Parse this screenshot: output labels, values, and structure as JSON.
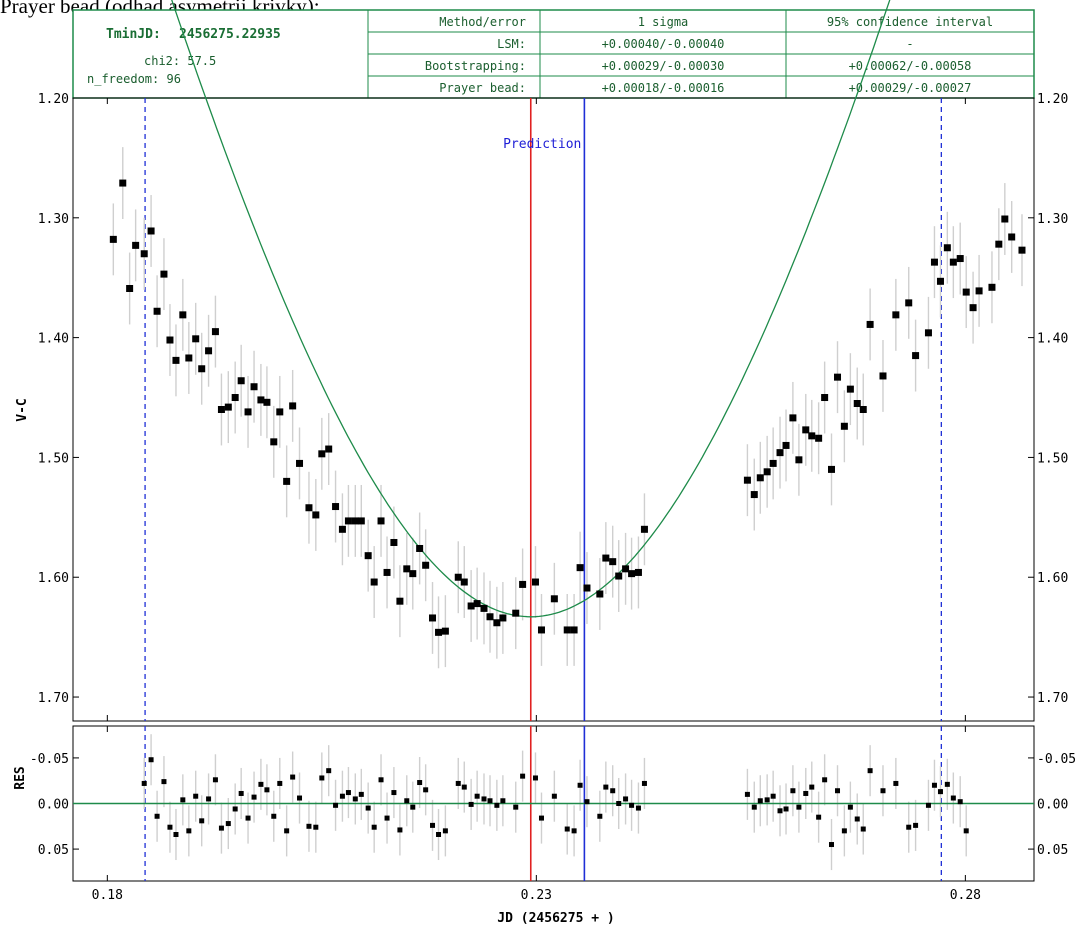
{
  "page_title": "Prayer bead (odhad asymetrii krivky):",
  "info": {
    "tmin_label": "TminJD:",
    "tmin_value": "2456275.22935",
    "chi2": "chi2: 57.5",
    "n_freedom": "n_freedom: 96",
    "headers": [
      "Method/error",
      "1 sigma",
      "95% confidence interval"
    ],
    "rows": [
      {
        "method": "LSM:",
        "sigma": "+0.00040/-0.00040",
        "ci": "-"
      },
      {
        "method": "Bootstrapping:",
        "sigma": "+0.00029/-0.00030",
        "ci": "+0.00062/-0.00058"
      },
      {
        "method": "Prayer bead:",
        "sigma": "+0.00018/-0.00016",
        "ci": "+0.00029/-0.00027"
      }
    ]
  },
  "colors": {
    "fit": "#1e8b4a",
    "tmin_line": "#e02020",
    "prediction_line": "#1f2fd6",
    "window": "#1f2fd6",
    "errorbar": "#cfcfcf",
    "frame": "#000000",
    "points": "#000000"
  },
  "chart_data": [
    {
      "type": "scatter",
      "ylabel": "V-C",
      "xlim": [
        0.176,
        0.288
      ],
      "ylim": [
        1.72,
        1.2
      ],
      "y_inverted": true,
      "xticks": [
        0.18,
        0.23,
        0.28
      ],
      "yticks": [
        1.2,
        1.3,
        1.4,
        1.5,
        1.6,
        1.7
      ],
      "ytick_labels": [
        "1.20",
        "1.30",
        "1.40",
        "1.50",
        "1.60",
        "1.70"
      ],
      "tmin_x": 0.22935,
      "prediction_x": 0.2356,
      "prediction_label": "Prediction",
      "window": [
        0.1844,
        0.2772
      ],
      "fit": {
        "x0": 0.22935,
        "ymin": 1.633,
        "a": 700,
        "s": 0.044
      },
      "points": [
        [
          0.1807,
          1.318,
          0.03
        ],
        [
          0.1818,
          1.271,
          0.03
        ],
        [
          0.1826,
          1.359,
          0.03
        ],
        [
          0.1833,
          1.323,
          0.03
        ],
        [
          0.1843,
          1.33,
          0.03
        ],
        [
          0.1851,
          1.311,
          0.03
        ],
        [
          0.1858,
          1.378,
          0.03
        ],
        [
          0.1866,
          1.347,
          0.03
        ],
        [
          0.1873,
          1.402,
          0.03
        ],
        [
          0.188,
          1.419,
          0.03
        ],
        [
          0.1888,
          1.381,
          0.03
        ],
        [
          0.1895,
          1.417,
          0.03
        ],
        [
          0.1903,
          1.401,
          0.03
        ],
        [
          0.191,
          1.426,
          0.03
        ],
        [
          0.1918,
          1.411,
          0.03
        ],
        [
          0.1926,
          1.395,
          0.03
        ],
        [
          0.1933,
          1.46,
          0.03
        ],
        [
          0.1941,
          1.458,
          0.03
        ],
        [
          0.1949,
          1.45,
          0.03
        ],
        [
          0.1956,
          1.436,
          0.03
        ],
        [
          0.1964,
          1.462,
          0.03
        ],
        [
          0.1971,
          1.441,
          0.03
        ],
        [
          0.1979,
          1.452,
          0.03
        ],
        [
          0.1986,
          1.454,
          0.03
        ],
        [
          0.1994,
          1.487,
          0.03
        ],
        [
          0.2001,
          1.462,
          0.03
        ],
        [
          0.2009,
          1.52,
          0.03
        ],
        [
          0.2016,
          1.457,
          0.03
        ],
        [
          0.2024,
          1.505,
          0.03
        ],
        [
          0.2035,
          1.542,
          0.03
        ],
        [
          0.2043,
          1.548,
          0.03
        ],
        [
          0.205,
          1.497,
          0.03
        ],
        [
          0.2058,
          1.493,
          0.03
        ],
        [
          0.2066,
          1.541,
          0.03
        ],
        [
          0.2074,
          1.56,
          0.03
        ],
        [
          0.2081,
          1.553,
          0.03
        ],
        [
          0.2089,
          1.553,
          0.03
        ],
        [
          0.2096,
          1.553,
          0.03
        ],
        [
          0.2104,
          1.582,
          0.03
        ],
        [
          0.2111,
          1.604,
          0.03
        ],
        [
          0.2119,
          1.553,
          0.03
        ],
        [
          0.2126,
          1.596,
          0.03
        ],
        [
          0.2134,
          1.571,
          0.03
        ],
        [
          0.2141,
          1.62,
          0.03
        ],
        [
          0.2149,
          1.593,
          0.03
        ],
        [
          0.2156,
          1.597,
          0.03
        ],
        [
          0.2164,
          1.576,
          0.03
        ],
        [
          0.2171,
          1.59,
          0.03
        ],
        [
          0.2179,
          1.634,
          0.03
        ],
        [
          0.2186,
          1.646,
          0.03
        ],
        [
          0.2194,
          1.645,
          0.03
        ],
        [
          0.2209,
          1.6,
          0.03
        ],
        [
          0.2216,
          1.604,
          0.03
        ],
        [
          0.2224,
          1.624,
          0.03
        ],
        [
          0.2231,
          1.622,
          0.03
        ],
        [
          0.2239,
          1.626,
          0.03
        ],
        [
          0.2246,
          1.633,
          0.03
        ],
        [
          0.2254,
          1.638,
          0.03
        ],
        [
          0.2261,
          1.634,
          0.03
        ],
        [
          0.2276,
          1.63,
          0.03
        ],
        [
          0.2284,
          1.606,
          0.03
        ],
        [
          0.2299,
          1.604,
          0.03
        ],
        [
          0.2306,
          1.644,
          0.03
        ],
        [
          0.2321,
          1.618,
          0.03
        ],
        [
          0.2336,
          1.644,
          0.03
        ],
        [
          0.2344,
          1.644,
          0.03
        ],
        [
          0.2351,
          1.592,
          0.03
        ],
        [
          0.2359,
          1.609,
          0.03
        ],
        [
          0.2374,
          1.614,
          0.03
        ],
        [
          0.2381,
          1.584,
          0.03
        ],
        [
          0.2389,
          1.587,
          0.03
        ],
        [
          0.2396,
          1.599,
          0.03
        ],
        [
          0.2404,
          1.593,
          0.03
        ],
        [
          0.2411,
          1.597,
          0.03
        ],
        [
          0.2419,
          1.596,
          0.03
        ],
        [
          0.2426,
          1.56,
          0.03
        ],
        [
          0.2546,
          1.519,
          0.03
        ],
        [
          0.2554,
          1.531,
          0.03
        ],
        [
          0.2561,
          1.517,
          0.03
        ],
        [
          0.2569,
          1.512,
          0.03
        ],
        [
          0.2576,
          1.505,
          0.03
        ],
        [
          0.2584,
          1.496,
          0.03
        ],
        [
          0.2591,
          1.49,
          0.03
        ],
        [
          0.2599,
          1.467,
          0.03
        ],
        [
          0.2606,
          1.502,
          0.03
        ],
        [
          0.2614,
          1.477,
          0.03
        ],
        [
          0.2621,
          1.482,
          0.03
        ],
        [
          0.2629,
          1.484,
          0.03
        ],
        [
          0.2636,
          1.45,
          0.03
        ],
        [
          0.2644,
          1.51,
          0.03
        ],
        [
          0.2651,
          1.433,
          0.03
        ],
        [
          0.2659,
          1.474,
          0.03
        ],
        [
          0.2666,
          1.443,
          0.03
        ],
        [
          0.2674,
          1.455,
          0.03
        ],
        [
          0.2681,
          1.46,
          0.03
        ],
        [
          0.2689,
          1.389,
          0.03
        ],
        [
          0.2704,
          1.432,
          0.03
        ],
        [
          0.2719,
          1.381,
          0.03
        ],
        [
          0.2734,
          1.371,
          0.03
        ],
        [
          0.2742,
          1.415,
          0.03
        ],
        [
          0.2757,
          1.396,
          0.03
        ],
        [
          0.2764,
          1.337,
          0.03
        ],
        [
          0.2771,
          1.353,
          0.03
        ],
        [
          0.2779,
          1.325,
          0.03
        ],
        [
          0.2786,
          1.337,
          0.03
        ],
        [
          0.2794,
          1.334,
          0.03
        ],
        [
          0.2801,
          1.362,
          0.03
        ],
        [
          0.2809,
          1.375,
          0.03
        ],
        [
          0.2816,
          1.361,
          0.03
        ],
        [
          0.2831,
          1.358,
          0.03
        ],
        [
          0.2839,
          1.322,
          0.03
        ],
        [
          0.2846,
          1.301,
          0.03
        ],
        [
          0.2854,
          1.316,
          0.03
        ],
        [
          0.2866,
          1.327,
          0.03
        ]
      ]
    },
    {
      "type": "scatter",
      "ylabel": "RES",
      "xlabel": "JD (2456275 + )",
      "xlim": [
        0.176,
        0.288
      ],
      "ylim": [
        0.085,
        -0.085
      ],
      "y_inverted": true,
      "xticks": [
        0.18,
        0.23,
        0.28
      ],
      "xtick_labels": [
        "0.18",
        "0.23",
        "0.28"
      ],
      "yticks": [
        -0.05,
        0.0,
        0.05
      ],
      "ytick_labels": [
        "-0.05",
        "0.00",
        "0.05"
      ],
      "zero_line": 0.0,
      "points": [
        [
          0.1843,
          -0.022,
          0.028
        ],
        [
          0.1851,
          -0.048,
          0.028
        ],
        [
          0.1858,
          0.014,
          0.028
        ],
        [
          0.1866,
          -0.024,
          0.028
        ],
        [
          0.1873,
          0.026,
          0.028
        ],
        [
          0.188,
          0.034,
          0.028
        ],
        [
          0.1888,
          -0.004,
          0.028
        ],
        [
          0.1895,
          0.03,
          0.028
        ],
        [
          0.1903,
          -0.008,
          0.028
        ],
        [
          0.191,
          0.019,
          0.028
        ],
        [
          0.1918,
          -0.005,
          0.028
        ],
        [
          0.1926,
          -0.026,
          0.028
        ],
        [
          0.1933,
          0.027,
          0.028
        ],
        [
          0.1941,
          0.022,
          0.028
        ],
        [
          0.1949,
          0.006,
          0.028
        ],
        [
          0.1956,
          -0.011,
          0.028
        ],
        [
          0.1964,
          0.016,
          0.028
        ],
        [
          0.1971,
          -0.007,
          0.028
        ],
        [
          0.1979,
          -0.021,
          0.028
        ],
        [
          0.1986,
          -0.015,
          0.028
        ],
        [
          0.1994,
          0.014,
          0.028
        ],
        [
          0.2001,
          -0.022,
          0.028
        ],
        [
          0.2009,
          0.03,
          0.028
        ],
        [
          0.2016,
          -0.029,
          0.028
        ],
        [
          0.2024,
          -0.006,
          0.028
        ],
        [
          0.2035,
          0.025,
          0.028
        ],
        [
          0.2043,
          0.026,
          0.028
        ],
        [
          0.205,
          -0.028,
          0.028
        ],
        [
          0.2058,
          -0.036,
          0.028
        ],
        [
          0.2066,
          0.002,
          0.028
        ],
        [
          0.2074,
          -0.008,
          0.028
        ],
        [
          0.2081,
          -0.012,
          0.028
        ],
        [
          0.2089,
          -0.005,
          0.028
        ],
        [
          0.2096,
          -0.01,
          0.028
        ],
        [
          0.2104,
          0.005,
          0.028
        ],
        [
          0.2111,
          0.026,
          0.028
        ],
        [
          0.2119,
          -0.026,
          0.028
        ],
        [
          0.2126,
          0.016,
          0.028
        ],
        [
          0.2134,
          -0.012,
          0.028
        ],
        [
          0.2141,
          0.029,
          0.028
        ],
        [
          0.2149,
          -0.003,
          0.028
        ],
        [
          0.2156,
          0.004,
          0.028
        ],
        [
          0.2164,
          -0.023,
          0.028
        ],
        [
          0.2171,
          -0.015,
          0.028
        ],
        [
          0.2179,
          0.024,
          0.028
        ],
        [
          0.2186,
          0.034,
          0.028
        ],
        [
          0.2194,
          0.03,
          0.028
        ],
        [
          0.2209,
          -0.022,
          0.028
        ],
        [
          0.2216,
          -0.018,
          0.028
        ],
        [
          0.2224,
          0.001,
          0.028
        ],
        [
          0.2231,
          -0.008,
          0.028
        ],
        [
          0.2239,
          -0.005,
          0.028
        ],
        [
          0.2246,
          -0.003,
          0.028
        ],
        [
          0.2254,
          0.002,
          0.028
        ],
        [
          0.2261,
          -0.003,
          0.028
        ],
        [
          0.2276,
          0.004,
          0.028
        ],
        [
          0.2284,
          -0.03,
          0.028
        ],
        [
          0.2299,
          -0.028,
          0.028
        ],
        [
          0.2306,
          0.016,
          0.028
        ],
        [
          0.2321,
          -0.008,
          0.028
        ],
        [
          0.2336,
          0.028,
          0.028
        ],
        [
          0.2344,
          0.03,
          0.028
        ],
        [
          0.2351,
          -0.02,
          0.028
        ],
        [
          0.2359,
          -0.002,
          0.028
        ],
        [
          0.2374,
          0.014,
          0.028
        ],
        [
          0.2381,
          -0.018,
          0.028
        ],
        [
          0.2389,
          -0.014,
          0.028
        ],
        [
          0.2396,
          0.0,
          0.028
        ],
        [
          0.2404,
          -0.005,
          0.028
        ],
        [
          0.2411,
          0.002,
          0.028
        ],
        [
          0.2419,
          0.005,
          0.028
        ],
        [
          0.2426,
          -0.022,
          0.028
        ],
        [
          0.2546,
          -0.01,
          0.028
        ],
        [
          0.2554,
          0.004,
          0.028
        ],
        [
          0.2561,
          -0.003,
          0.028
        ],
        [
          0.2569,
          -0.004,
          0.028
        ],
        [
          0.2576,
          -0.008,
          0.028
        ],
        [
          0.2584,
          0.008,
          0.028
        ],
        [
          0.2591,
          0.006,
          0.028
        ],
        [
          0.2599,
          -0.014,
          0.028
        ],
        [
          0.2606,
          0.004,
          0.028
        ],
        [
          0.2614,
          -0.011,
          0.028
        ],
        [
          0.2621,
          -0.018,
          0.028
        ],
        [
          0.2629,
          0.015,
          0.028
        ],
        [
          0.2636,
          -0.026,
          0.028
        ],
        [
          0.2644,
          0.045,
          0.028
        ],
        [
          0.2651,
          -0.014,
          0.028
        ],
        [
          0.2659,
          0.03,
          0.028
        ],
        [
          0.2666,
          0.004,
          0.028
        ],
        [
          0.2674,
          0.017,
          0.028
        ],
        [
          0.2681,
          0.028,
          0.028
        ],
        [
          0.2689,
          -0.036,
          0.028
        ],
        [
          0.2704,
          -0.014,
          0.028
        ],
        [
          0.2719,
          -0.022,
          0.028
        ],
        [
          0.2734,
          0.026,
          0.028
        ],
        [
          0.2742,
          0.024,
          0.028
        ],
        [
          0.2757,
          0.002,
          0.028
        ],
        [
          0.2764,
          -0.02,
          0.028
        ],
        [
          0.2771,
          -0.013,
          0.028
        ],
        [
          0.2779,
          -0.021,
          0.028
        ],
        [
          0.2786,
          -0.006,
          0.028
        ],
        [
          0.2794,
          -0.002,
          0.028
        ],
        [
          0.2801,
          0.03,
          0.028
        ]
      ]
    }
  ]
}
